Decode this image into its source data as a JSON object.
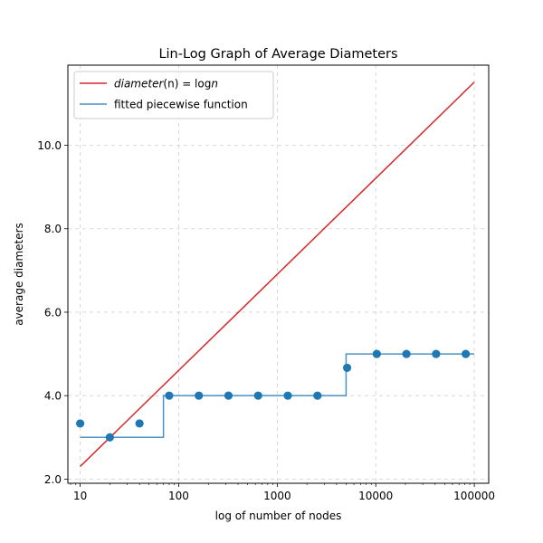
{
  "chart_data": {
    "type": "line",
    "title": "Lin-Log Graph of Average Diameters",
    "xlabel": "log of number of nodes",
    "ylabel": "average diameters",
    "x_scale": "log",
    "xlim": [
      7.5,
      140000
    ],
    "ylim": [
      1.9,
      11.92
    ],
    "x_ticks": [
      10,
      100,
      1000,
      10000,
      100000
    ],
    "x_tick_labels": [
      "10",
      "100",
      "1000",
      "10000",
      "100000"
    ],
    "y_ticks": [
      2.0,
      4.0,
      6.0,
      8.0,
      10.0
    ],
    "y_tick_labels": [
      "2.0",
      "4.0",
      "6.0",
      "8.0",
      "10.0"
    ],
    "grid": true,
    "legend_position": "upper-left",
    "legend": [
      {
        "label_main": "diameter",
        "label_rest": "(n) = log",
        "label_tail": "n",
        "color": "#d62728",
        "kind": "line"
      },
      {
        "label": "fitted piecewise function",
        "color": "#1f77b4",
        "kind": "line"
      }
    ],
    "series": [
      {
        "kind": "line",
        "color": "#d62728",
        "x": [
          10,
          100000
        ],
        "y": [
          2.3026,
          11.5129
        ]
      },
      {
        "kind": "step",
        "color": "#1f77b4",
        "x": [
          10,
          70,
          70,
          5000,
          5000,
          100000
        ],
        "y": [
          3,
          3,
          4,
          4,
          5,
          5
        ]
      },
      {
        "kind": "scatter",
        "color": "#1f77b4",
        "x": [
          10,
          20,
          40,
          80,
          160,
          320,
          640,
          1280,
          2560,
          5120,
          10240,
          20480,
          40960,
          81920
        ],
        "y": [
          3.333,
          3.0,
          3.333,
          4.0,
          4.0,
          4.0,
          4.0,
          4.0,
          4.0,
          4.667,
          5.0,
          5.0,
          5.0,
          5.0
        ]
      }
    ]
  }
}
